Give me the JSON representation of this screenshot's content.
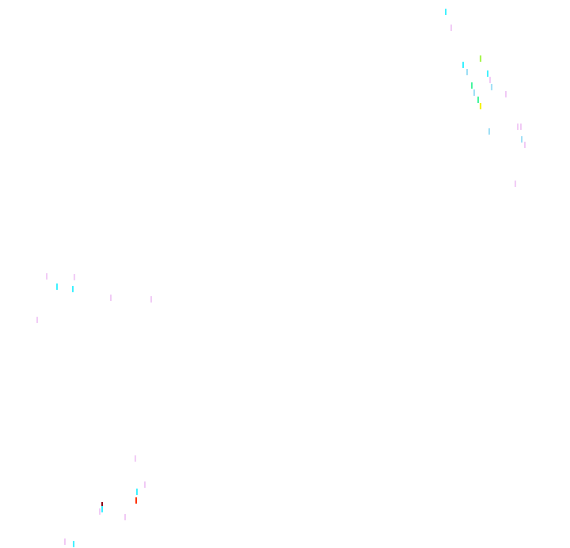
{
  "background_color": "#ffffff",
  "speck_colors": {
    "cyan": "#33f0ff",
    "light_blue": "#99ddf5",
    "pink": "#f0c8f5",
    "lime": "#9ef53c",
    "green": "#3cf59a",
    "yellow": "#f5f000",
    "red": "#ff2a00",
    "dark_red": "#8a0010"
  }
}
